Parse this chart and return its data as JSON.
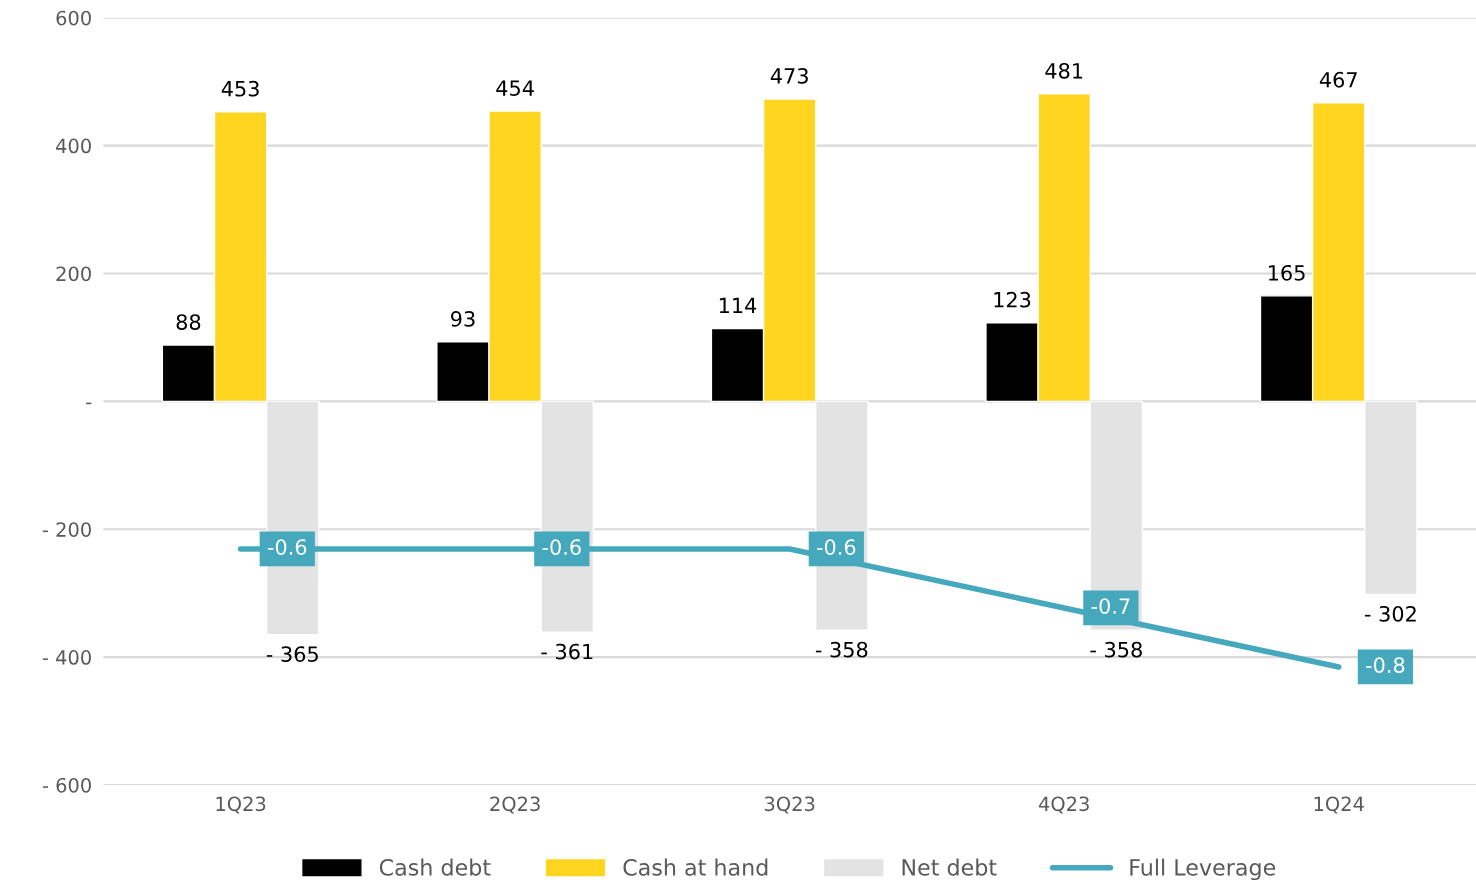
{
  "chart_data": {
    "type": "bar",
    "categories": [
      "1Q23",
      "2Q23",
      "3Q23",
      "4Q23",
      "1Q24"
    ],
    "series": [
      {
        "name": "Cash debt",
        "color": "#000000",
        "values": [
          88,
          93,
          114,
          123,
          165
        ],
        "value_labels": [
          "88",
          "93",
          "114",
          "123",
          "165"
        ]
      },
      {
        "name": "Cash at hand",
        "color": "#ffd520",
        "values": [
          453,
          454,
          473,
          481,
          467
        ],
        "value_labels": [
          "453",
          "454",
          "473",
          "481",
          "467"
        ]
      },
      {
        "name": "Net debt",
        "color": "#e3e3e3",
        "values": [
          -365,
          -361,
          -358,
          -358,
          -302
        ],
        "value_labels": [
          "- 365",
          "- 361",
          "- 358",
          "- 358",
          "- 302"
        ]
      },
      {
        "name": "Full Leverage",
        "type": "line",
        "axis": "y2",
        "color": "#45a8bc",
        "values": [
          -0.6,
          -0.6,
          -0.6,
          -0.7,
          -0.8
        ],
        "value_labels": [
          "-0.6",
          "-0.6",
          "-0.6",
          "-0.7",
          "-0.8"
        ]
      }
    ],
    "ylim": [
      -600,
      600
    ],
    "yticks": [
      {
        "value": -600,
        "label": "- 600"
      },
      {
        "value": -400,
        "label": "- 400"
      },
      {
        "value": -200,
        "label": "- 200"
      },
      {
        "value": 0,
        "label": "-"
      },
      200,
      400,
      600
    ],
    "y2lim": [
      -1.0,
      0.3
    ],
    "grid": "y",
    "legend": "bottom"
  }
}
